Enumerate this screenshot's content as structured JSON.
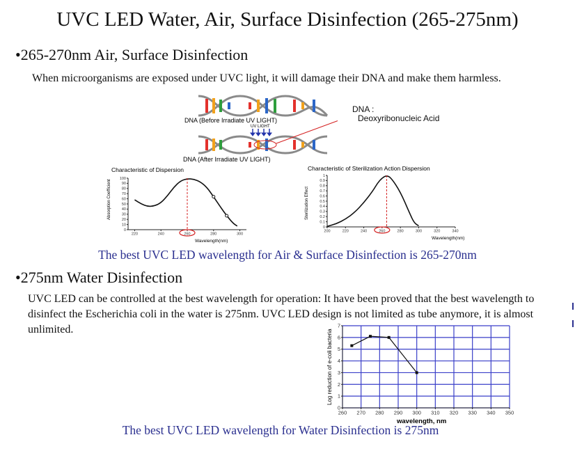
{
  "title": "UVC LED Water, Air, Surface Disinfection (265-275nm)",
  "section1": {
    "heading": "•265-270nm Air, Surface Disinfection",
    "text": "When microorganisms are exposed under UVC light, it will damage their DNA and make them harmless.",
    "dna_before": "DNA (Before Irradiate UV LIGHT)",
    "dna_after": "DNA (After Irradiate UV LIGHT)",
    "uv_light": "UV LIGHT",
    "callout_title": "DNA :",
    "callout_text": "Deoxyribonucleic Acid",
    "caption": "The best UVC LED wavelength for Air & Surface Disinfection is 265-270nm"
  },
  "section2": {
    "heading": "•275nm Water Disinfection",
    "text": "UVC LED can be controlled at the best wavelength for operation: It have been proved that the best wavelength to disinfect the Escherichia coli in the water is 275nm. UVC LED design is not limited as tube anymore, it is almost unlimited.",
    "caption": "The best UVC LED wavelength for Water Disinfection is 275nm"
  },
  "colors": {
    "caption_blue": "#2a2f8f",
    "grid_blue": "#3a3fc9",
    "marker_red": "#d42020"
  },
  "chart_data": [
    {
      "type": "line",
      "title": "Characteristic of Dispersion",
      "xlabel": "Wavelength(nm)",
      "ylabel": "Absorption Coefficient",
      "xlim": [
        215,
        305
      ],
      "ylim": [
        0,
        100
      ],
      "x_ticks": [
        "220",
        "240",
        "260",
        "280",
        "300"
      ],
      "y_ticks": [
        "0",
        "10",
        "20",
        "30",
        "40",
        "50",
        "60",
        "70",
        "80",
        "90",
        "100"
      ],
      "highlight_tick": "260",
      "peak_marker_x": 260,
      "x": [
        220,
        225,
        230,
        235,
        240,
        245,
        250,
        255,
        260,
        265,
        270,
        275,
        280,
        285,
        290,
        295,
        298
      ],
      "y": [
        58,
        50,
        45,
        46,
        52,
        66,
        83,
        95,
        99,
        98,
        93,
        82,
        64,
        45,
        27,
        12,
        7
      ],
      "markers_x": [
        280,
        290
      ]
    },
    {
      "type": "line",
      "title": "Characteristic of Sterilization Action Dispersion",
      "xlabel": "Wavelength(nm)",
      "ylabel": "Sterilization Effect",
      "xlim": [
        200,
        340
      ],
      "ylim": [
        0,
        1.0
      ],
      "x_ticks": [
        "200",
        "220",
        "240",
        "260",
        "280",
        "300",
        "320",
        "340"
      ],
      "y_ticks": [
        "0",
        "0.1",
        "0.2",
        "0.3",
        "0.4",
        "0.5",
        "0.6",
        "0.7",
        "0.8",
        "0.9",
        "1"
      ],
      "highlight_tick": "260",
      "peak_marker_x": 265,
      "x": [
        200,
        210,
        220,
        230,
        240,
        250,
        255,
        260,
        265,
        270,
        280,
        290,
        295,
        300
      ],
      "y": [
        0.01,
        0.06,
        0.15,
        0.28,
        0.47,
        0.7,
        0.85,
        0.95,
        1.0,
        0.95,
        0.68,
        0.27,
        0.08,
        0.02
      ]
    },
    {
      "type": "line",
      "xlabel": "wavelength, nm",
      "ylabel": "Log reduction of e-coli bacteria",
      "xlim": [
        260,
        350
      ],
      "ylim": [
        0,
        7
      ],
      "x_ticks": [
        "260",
        "270",
        "280",
        "290",
        "300",
        "310",
        "320",
        "330",
        "340",
        "350"
      ],
      "y_ticks": [
        "0",
        "1",
        "2",
        "3",
        "4",
        "5",
        "6",
        "7"
      ],
      "x": [
        265,
        275,
        285,
        300
      ],
      "y": [
        5.3,
        6.1,
        6.0,
        3.0
      ]
    }
  ]
}
